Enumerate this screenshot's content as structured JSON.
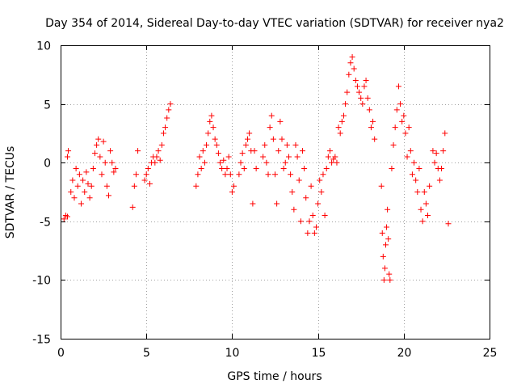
{
  "chart_data": {
    "type": "scatter",
    "title": "Day 354 of 2014, Sidereal Day-to-day VTEC variation (SDTVAR) for receiver nya2",
    "xlabel": "GPS time / hours",
    "ylabel": "SDTVAR / TECUs",
    "xlim": [
      0,
      25
    ],
    "ylim": [
      -15,
      10
    ],
    "xticks": [
      0,
      5,
      10,
      15,
      20,
      25
    ],
    "yticks": [
      -15,
      -10,
      -5,
      0,
      5,
      10
    ],
    "grid": true,
    "marker": "+",
    "color": "#ff0000",
    "series": [
      {
        "name": "SDTVAR",
        "segments": [
          {
            "x": [
              0.2,
              0.3,
              0.4
            ],
            "y": [
              -4.8,
              -4.5,
              -4.6
            ]
          },
          {
            "x": [
              0.4,
              0.45
            ],
            "y": [
              0.5,
              1.0
            ]
          },
          {
            "x": [
              0.6,
              0.7,
              0.8,
              0.9,
              1.0,
              1.1,
              1.2,
              1.3,
              1.4,
              1.5,
              1.6,
              1.7,
              1.8,
              1.9,
              2.0,
              2.1,
              2.2,
              2.3,
              2.4,
              2.5,
              2.6,
              2.7,
              2.8,
              2.9,
              3.0,
              3.1,
              3.2
            ],
            "y": [
              -2.5,
              -1.5,
              -3.0,
              -0.5,
              -2.0,
              -1.0,
              -3.5,
              -1.5,
              -2.5,
              -0.8,
              -1.8,
              -3.0,
              -2.0,
              -0.5,
              0.8,
              1.5,
              2.0,
              0.5,
              -1.0,
              1.8,
              0.0,
              -2.0,
              -2.8,
              1.0,
              0.0,
              -0.8,
              -0.5
            ]
          },
          {
            "x": [
              4.2,
              4.3,
              4.4,
              4.5
            ],
            "y": [
              -3.8,
              -2.0,
              -1.0,
              1.0
            ]
          },
          {
            "x": [
              4.9,
              5.0,
              5.1,
              5.2,
              5.3,
              5.4,
              5.5,
              5.6,
              5.7,
              5.8,
              5.9,
              6.0,
              6.1,
              6.2,
              6.3,
              6.4
            ],
            "y": [
              -1.5,
              -1.0,
              -0.5,
              -1.8,
              0.0,
              0.5,
              0.0,
              0.5,
              1.0,
              0.2,
              1.5,
              2.5,
              3.0,
              3.8,
              4.5,
              5.0
            ]
          },
          {
            "x": [
              7.9,
              8.0,
              8.1,
              8.2,
              8.3,
              8.4,
              8.5,
              8.6,
              8.7,
              8.8,
              8.9,
              9.0,
              9.1,
              9.2,
              9.3,
              9.4,
              9.5,
              9.6,
              9.7,
              9.8,
              9.9,
              10.0,
              10.1
            ],
            "y": [
              -2.0,
              -1.0,
              0.5,
              -0.5,
              1.0,
              0.0,
              1.5,
              2.5,
              3.5,
              4.0,
              3.0,
              2.0,
              1.5,
              0.8,
              0.0,
              -0.5,
              0.2,
              -1.0,
              -0.5,
              0.5,
              -1.0,
              -2.5,
              -2.0
            ]
          },
          {
            "x": [
              10.4,
              10.5,
              10.6,
              10.7,
              10.8,
              10.9,
              11.0,
              11.1
            ],
            "y": [
              -1.0,
              0.0,
              0.8,
              -0.5,
              1.5,
              2.0,
              2.5,
              1.0
            ]
          },
          {
            "x": [
              11.2,
              11.3,
              11.4
            ],
            "y": [
              -3.5,
              1.0,
              -0.5
            ]
          },
          {
            "x": [
              11.8,
              11.9,
              12.0,
              12.1,
              12.2,
              12.3,
              12.4,
              12.5,
              12.6,
              12.7,
              12.8,
              12.9,
              13.0,
              13.1,
              13.2,
              13.3
            ],
            "y": [
              0.5,
              1.5,
              0.0,
              -1.0,
              3.0,
              4.0,
              2.0,
              -1.0,
              -3.5,
              1.0,
              3.5,
              2.0,
              -0.5,
              0.0,
              1.5,
              0.5
            ]
          },
          {
            "x": [
              13.4,
              13.5,
              13.6,
              13.7,
              13.8,
              13.9,
              14.0,
              14.1,
              14.2,
              14.3,
              14.4,
              14.5,
              14.6,
              14.7,
              14.8,
              14.9,
              15.0,
              15.1,
              15.2,
              15.3,
              15.4
            ],
            "y": [
              -1.0,
              -2.5,
              -4.0,
              1.5,
              0.5,
              -1.5,
              -5.0,
              1.0,
              -0.5,
              -3.0,
              -6.0,
              -5.0,
              -2.0,
              -4.5,
              -6.0,
              -5.5,
              -3.5,
              -1.5,
              -2.5,
              -1.0,
              -4.5
            ]
          },
          {
            "x": [
              15.5,
              15.6,
              15.7,
              15.8,
              15.9,
              16.0,
              16.1,
              16.2,
              16.3,
              16.4,
              16.5,
              16.6,
              16.7,
              16.8,
              16.9,
              17.0,
              17.1,
              17.2,
              17.3,
              17.4,
              17.5,
              17.6,
              17.7,
              17.8,
              17.9,
              18.0,
              18.1,
              18.2,
              18.3
            ],
            "y": [
              -0.5,
              0.5,
              1.0,
              0.0,
              0.3,
              0.5,
              0.0,
              3.0,
              2.5,
              3.5,
              4.0,
              5.0,
              6.0,
              7.5,
              8.5,
              9.0,
              8.0,
              7.0,
              6.5,
              6.0,
              5.5,
              5.0,
              6.5,
              7.0,
              5.5,
              4.5,
              3.0,
              3.5,
              2.0
            ]
          },
          {
            "x": [
              18.7,
              18.75,
              18.8,
              18.85,
              18.9,
              18.95,
              19.0,
              19.05,
              19.1,
              19.15,
              19.2
            ],
            "y": [
              -2.0,
              -6.0,
              -8.0,
              -10.0,
              -9.0,
              -7.0,
              -5.5,
              -4.0,
              -6.5,
              -9.5,
              -10.0
            ]
          },
          {
            "x": [
              19.3,
              19.4,
              19.5,
              19.6,
              19.7,
              19.8,
              19.9,
              20.0,
              20.1,
              20.2,
              20.3,
              20.4,
              20.5,
              20.6,
              20.7,
              20.8,
              20.9
            ],
            "y": [
              -0.5,
              1.5,
              3.0,
              4.5,
              6.5,
              5.0,
              3.5,
              4.0,
              2.5,
              0.5,
              3.0,
              1.0,
              -1.0,
              0.0,
              -1.5,
              -2.5,
              -0.5
            ]
          },
          {
            "x": [
              21.0,
              21.1,
              21.2,
              21.3,
              21.4,
              21.5
            ],
            "y": [
              -4.0,
              -5.0,
              -2.5,
              -3.5,
              -4.5,
              -2.0
            ]
          },
          {
            "x": [
              21.7,
              21.8,
              21.9,
              22.0
            ],
            "y": [
              1.0,
              0.0,
              0.8,
              -0.5
            ]
          },
          {
            "x": [
              22.1,
              22.2,
              22.3,
              22.4
            ],
            "y": [
              -1.5,
              -0.5,
              1.0,
              2.5
            ]
          },
          {
            "x": [
              22.6
            ],
            "y": [
              -5.2
            ]
          }
        ]
      }
    ]
  }
}
